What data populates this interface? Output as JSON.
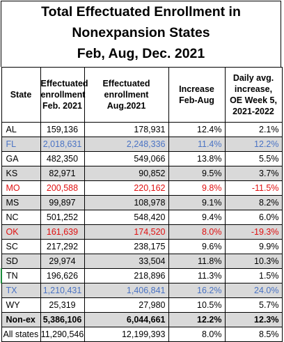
{
  "title": {
    "line1": "Total Effectuated Enrollment in",
    "line2": "Nonexpansion States",
    "line3": "Feb, Aug, Dec. 2021"
  },
  "headers": {
    "state": "State",
    "feb": [
      "Effectuated",
      "enrollment",
      "Feb. 2021"
    ],
    "aug": [
      "Effectuated",
      "enrollment",
      "Aug.2021"
    ],
    "increase": [
      "Increase",
      "Feb-Aug"
    ],
    "daily": [
      "Daily avg.",
      "increase,",
      "OE Week 5,",
      "2021-2022"
    ]
  },
  "rows": [
    {
      "state": "AL",
      "feb": "159,136",
      "aug": "178,931",
      "inc": "12.4%",
      "daily": "2.1%"
    },
    {
      "state": "FL",
      "feb": "2,018,631",
      "aug": "2,248,336",
      "inc": "11.4%",
      "daily": "12.2%"
    },
    {
      "state": "GA",
      "feb": "482,350",
      "aug": "549,066",
      "inc": "13.8%",
      "daily": "5.5%"
    },
    {
      "state": "KS",
      "feb": "82,971",
      "aug": "90,852",
      "inc": "9.5%",
      "daily": "3.7%"
    },
    {
      "state": "MO",
      "feb": "200,588",
      "aug": "220,162",
      "inc": "9.8%",
      "daily": "-11.5%"
    },
    {
      "state": "MS",
      "feb": "99,897",
      "aug": "108,978",
      "inc": "9.1%",
      "daily": "8.2%"
    },
    {
      "state": "NC",
      "feb": "501,252",
      "aug": "548,420",
      "inc": "9.4%",
      "daily": "6.0%"
    },
    {
      "state": "OK",
      "feb": "161,639",
      "aug": "174,520",
      "inc": "8.0%",
      "daily": "-19.3%"
    },
    {
      "state": "SC",
      "feb": "217,292",
      "aug": "238,175",
      "inc": "9.6%",
      "daily": "9.9%"
    },
    {
      "state": "SD",
      "feb": "29,974",
      "aug": "33,504",
      "inc": "11.8%",
      "daily": "10.3%"
    },
    {
      "state": "TN",
      "feb": "196,626",
      "aug": "218,896",
      "inc": "11.3%",
      "daily": "1.5%"
    },
    {
      "state": "TX",
      "feb": "1,210,431",
      "aug": "1,406,841",
      "inc": "16.2%",
      "daily": "24.0%"
    },
    {
      "state": "WY",
      "feb": "25,319",
      "aug": "27,980",
      "inc": "10.5%",
      "daily": "5.7%"
    },
    {
      "state": "Non-ex",
      "feb": "5,386,106",
      "aug": "6,044,661",
      "inc": "12.2%",
      "daily": "12.3%"
    },
    {
      "state": "All states",
      "feb": "11,290,546",
      "aug": "12,199,393",
      "inc": "8.0%",
      "daily": "8.5%"
    }
  ],
  "colors": {
    "gray_row": "#d9d9d9",
    "blue_text": "#4a73c4",
    "red_text": "#e01010",
    "tn_marker": "#1a8a3a"
  }
}
